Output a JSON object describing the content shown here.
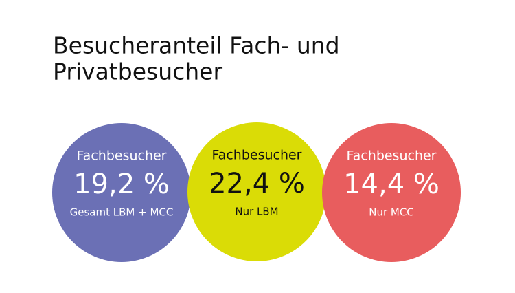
{
  "header": {
    "title_lines": [
      "Besucheranteil Fach- und",
      "Privatbesucher"
    ]
  },
  "items": [
    {
      "label": "Fachbesucher",
      "value": "19,2 %",
      "note": "Gesamt LBM + MCC",
      "color": "#6b70b5",
      "text_color": "#ffffff"
    },
    {
      "label": "Fachbesucher",
      "value": "22,4 %",
      "note": "Nur LBM",
      "color": "#dadc06",
      "text_color": "#111111"
    },
    {
      "label": "Fachbesucher",
      "value": "14,4 %",
      "note": "Nur MCC",
      "color": "#e85d5e",
      "text_color": "#ffffff"
    }
  ]
}
